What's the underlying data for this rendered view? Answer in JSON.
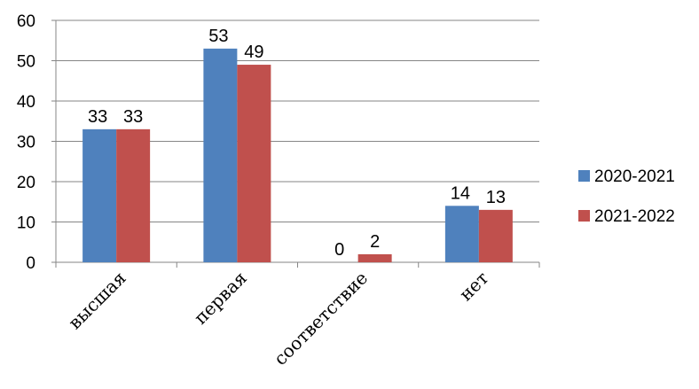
{
  "chart_data": {
    "type": "bar",
    "categories": [
      "высшая",
      "первая",
      "соответствие",
      "нет"
    ],
    "series": [
      {
        "name": "2020-2021",
        "values": [
          33,
          53,
          0,
          14
        ],
        "color": "#4F81BD"
      },
      {
        "name": "2021-2022",
        "values": [
          33,
          49,
          2,
          13
        ],
        "color": "#C0504D"
      }
    ],
    "yticks": [
      0,
      10,
      20,
      30,
      40,
      50,
      60
    ],
    "ylim": [
      0,
      60
    ],
    "grid": true,
    "legend_position": "right",
    "data_labels": true
  }
}
